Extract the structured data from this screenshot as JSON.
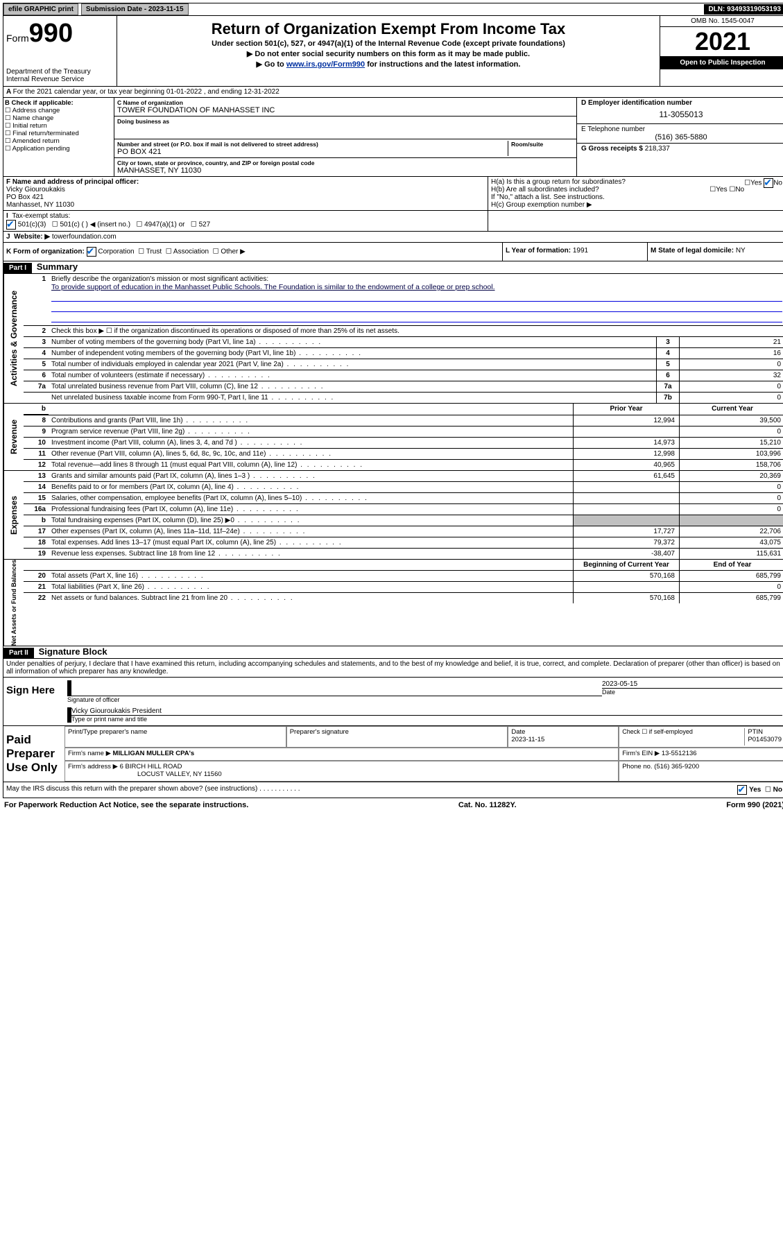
{
  "topbar": {
    "efile": "efile GRAPHIC print",
    "sub_label": "Submission Date - 2023-11-15",
    "dln": "DLN: 93493319053193"
  },
  "header": {
    "form_prefix": "Form",
    "form_no": "990",
    "dept": "Department of the Treasury",
    "irs": "Internal Revenue Service",
    "title": "Return of Organization Exempt From Income Tax",
    "sub1": "Under section 501(c), 527, or 4947(a)(1) of the Internal Revenue Code (except private foundations)",
    "sub2": "▶ Do not enter social security numbers on this form as it may be made public.",
    "sub3_pre": "▶ Go to ",
    "sub3_link": "www.irs.gov/Form990",
    "sub3_post": " for instructions and the latest information.",
    "omb": "OMB No. 1545-0047",
    "year": "2021",
    "inspect": "Open to Public Inspection"
  },
  "A": "For the 2021 calendar year, or tax year beginning 01-01-2022   , and ending 12-31-2022",
  "B": {
    "title": "B Check if applicable:",
    "items": [
      "Address change",
      "Name change",
      "Initial return",
      "Final return/terminated",
      "Amended return",
      "Application pending"
    ]
  },
  "C": {
    "name_lab": "C Name of organization",
    "name": "TOWER FOUNDATION OF MANHASSET INC",
    "dba_lab": "Doing business as",
    "addr_lab": "Number and street (or P.O. box if mail is not delivered to street address)",
    "room_lab": "Room/suite",
    "addr": "PO BOX 421",
    "city_lab": "City or town, state or province, country, and ZIP or foreign postal code",
    "city": "MANHASSET, NY  11030"
  },
  "D": {
    "lab": "D Employer identification number",
    "val": "11-3055013"
  },
  "E": {
    "lab": "E Telephone number",
    "val": "(516) 365-5880"
  },
  "G": {
    "lab": "G Gross receipts $",
    "val": "218,337"
  },
  "F": {
    "lab": "F  Name and address of principal officer:",
    "name": "Vicky Giouroukakis",
    "addr1": "PO Box 421",
    "addr2": "Manhasset, NY  11030"
  },
  "H": {
    "a": "H(a)  Is this a group return for subordinates?",
    "b": "H(b)  Are all subordinates included?",
    "b2": "If \"No,\" attach a list. See instructions.",
    "c": "H(c)  Group exemption number ▶",
    "yes": "Yes",
    "no": "No"
  },
  "I": {
    "lab": "Tax-exempt status:",
    "opts": [
      "501(c)(3)",
      "501(c) (  ) ◀ (insert no.)",
      "4947(a)(1) or",
      "527"
    ]
  },
  "J": {
    "lab": "Website: ▶",
    "val": "towerfoundation.com"
  },
  "K": {
    "lab": "K Form of organization:",
    "opts": [
      "Corporation",
      "Trust",
      "Association",
      "Other ▶"
    ]
  },
  "L": {
    "lab": "L Year of formation: ",
    "val": "1991"
  },
  "M": {
    "lab": "M State of legal domicile: ",
    "val": "NY"
  },
  "part1": {
    "bar": "Part I",
    "title": "Summary"
  },
  "summary": {
    "l1": "Briefly describe the organization's mission or most significant activities:",
    "mission": "To provide support of education in the Manhasset Public Schools. The Foundation is similar to the endowment of a college or prep school.",
    "l2": "Check this box ▶ ☐  if the organization discontinued its operations or disposed of more than 25% of its net assets.",
    "rows_top": [
      {
        "n": "3",
        "t": "Number of voting members of the governing body (Part VI, line 1a)",
        "b": "3",
        "v": "21"
      },
      {
        "n": "4",
        "t": "Number of independent voting members of the governing body (Part VI, line 1b)",
        "b": "4",
        "v": "16"
      },
      {
        "n": "5",
        "t": "Total number of individuals employed in calendar year 2021 (Part V, line 2a)",
        "b": "5",
        "v": "0"
      },
      {
        "n": "6",
        "t": "Total number of volunteers (estimate if necessary)",
        "b": "6",
        "v": "32"
      },
      {
        "n": "7a",
        "t": "Total unrelated business revenue from Part VIII, column (C), line 12",
        "b": "7a",
        "v": "0"
      },
      {
        "n": "",
        "t": "Net unrelated business taxable income from Form 990-T, Part I, line 11",
        "b": "7b",
        "v": "0"
      }
    ],
    "head_prior": "Prior Year",
    "head_curr": "Current Year",
    "rev": [
      {
        "n": "8",
        "t": "Contributions and grants (Part VIII, line 1h)",
        "p": "12,994",
        "c": "39,500"
      },
      {
        "n": "9",
        "t": "Program service revenue (Part VIII, line 2g)",
        "p": "",
        "c": "0"
      },
      {
        "n": "10",
        "t": "Investment income (Part VIII, column (A), lines 3, 4, and 7d )",
        "p": "14,973",
        "c": "15,210"
      },
      {
        "n": "11",
        "t": "Other revenue (Part VIII, column (A), lines 5, 6d, 8c, 9c, 10c, and 11e)",
        "p": "12,998",
        "c": "103,996"
      },
      {
        "n": "12",
        "t": "Total revenue—add lines 8 through 11 (must equal Part VIII, column (A), line 12)",
        "p": "40,965",
        "c": "158,706"
      }
    ],
    "exp": [
      {
        "n": "13",
        "t": "Grants and similar amounts paid (Part IX, column (A), lines 1–3 )",
        "p": "61,645",
        "c": "20,369"
      },
      {
        "n": "14",
        "t": "Benefits paid to or for members (Part IX, column (A), line 4)",
        "p": "",
        "c": "0"
      },
      {
        "n": "15",
        "t": "Salaries, other compensation, employee benefits (Part IX, column (A), lines 5–10)",
        "p": "",
        "c": "0"
      },
      {
        "n": "16a",
        "t": "Professional fundraising fees (Part IX, column (A), line 11e)",
        "p": "",
        "c": "0"
      },
      {
        "n": "b",
        "t": "Total fundraising expenses (Part IX, column (D), line 25) ▶0",
        "p": "GRAY",
        "c": "GRAY"
      },
      {
        "n": "17",
        "t": "Other expenses (Part IX, column (A), lines 11a–11d, 11f–24e)",
        "p": "17,727",
        "c": "22,706"
      },
      {
        "n": "18",
        "t": "Total expenses. Add lines 13–17 (must equal Part IX, column (A), line 25)",
        "p": "79,372",
        "c": "43,075"
      },
      {
        "n": "19",
        "t": "Revenue less expenses. Subtract line 18 from line 12",
        "p": "-38,407",
        "c": "115,631"
      }
    ],
    "head_beg": "Beginning of Current Year",
    "head_end": "End of Year",
    "net": [
      {
        "n": "20",
        "t": "Total assets (Part X, line 16)",
        "p": "570,168",
        "c": "685,799"
      },
      {
        "n": "21",
        "t": "Total liabilities (Part X, line 26)",
        "p": "",
        "c": "0"
      },
      {
        "n": "22",
        "t": "Net assets or fund balances. Subtract line 21 from line 20",
        "p": "570,168",
        "c": "685,799"
      }
    ]
  },
  "vlabels": {
    "gov": "Activities & Governance",
    "rev": "Revenue",
    "exp": "Expenses",
    "net": "Net Assets or Fund Balances"
  },
  "part2": {
    "bar": "Part II",
    "title": "Signature Block"
  },
  "perjury": "Under penalties of perjury, I declare that I have examined this return, including accompanying schedules and statements, and to the best of my knowledge and belief, it is true, correct, and complete. Declaration of preparer (other than officer) is based on all information of which preparer has any knowledge.",
  "sign": {
    "here": "Sign Here",
    "sig_lab": "Signature of officer",
    "date_lab": "Date",
    "date": "2023-05-15",
    "name": "Vicky Giouroukakis President",
    "name_lab": "Type or print name and title"
  },
  "paid": {
    "title": "Paid Preparer Use Only",
    "h": [
      "Print/Type preparer's name",
      "Preparer's signature",
      "Date",
      "",
      "PTIN"
    ],
    "date": "2023-11-15",
    "check": "Check ☐ if self-employed",
    "ptin": "P01453079",
    "firm_lab": "Firm's name    ▶",
    "firm": "MILLIGAN MULLER CPA's",
    "ein_lab": "Firm's EIN ▶",
    "ein": "13-5512136",
    "addr_lab": "Firm's address ▶",
    "addr1": "6 BIRCH HILL ROAD",
    "addr2": "LOCUST VALLEY, NY  11560",
    "phone_lab": "Phone no.",
    "phone": "(516) 365-9200"
  },
  "discuss": "May the IRS discuss this return with the preparer shown above? (see instructions)",
  "foot": {
    "l": "For Paperwork Reduction Act Notice, see the separate instructions.",
    "m": "Cat. No. 11282Y.",
    "r": "Form 990 (2021)"
  }
}
